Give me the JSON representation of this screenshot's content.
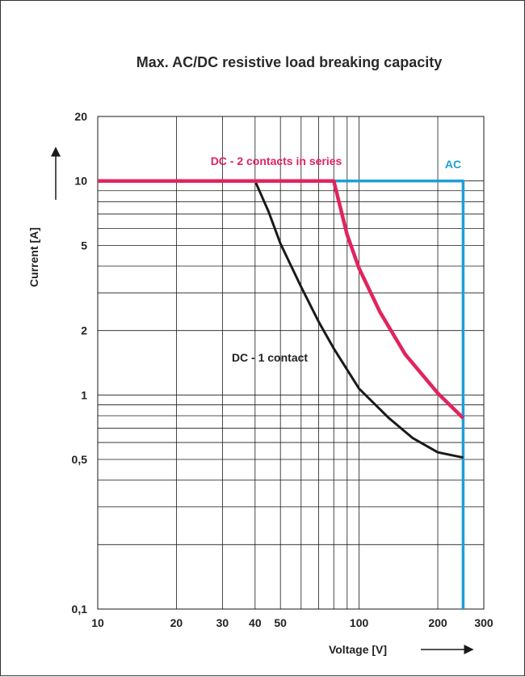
{
  "chart_data": {
    "type": "line",
    "title": "Max. AC/DC resistive load breaking capacity",
    "xlabel": "Voltage [V]",
    "ylabel": "Current [A]",
    "x_scale": "log",
    "y_scale": "log",
    "xlim": [
      10,
      300
    ],
    "ylim": [
      0.1,
      20
    ],
    "x_ticks": [
      {
        "value": 10,
        "label": "10"
      },
      {
        "value": 20,
        "label": "20"
      },
      {
        "value": 30,
        "label": "30"
      },
      {
        "value": 40,
        "label": "40"
      },
      {
        "value": 50,
        "label": "50"
      },
      {
        "value": 100,
        "label": "100"
      },
      {
        "value": 200,
        "label": "200"
      },
      {
        "value": 300,
        "label": "300"
      }
    ],
    "y_ticks": [
      {
        "value": 0.1,
        "label": "0,1"
      },
      {
        "value": 0.5,
        "label": "0,5"
      },
      {
        "value": 1,
        "label": "1"
      },
      {
        "value": 2,
        "label": "2"
      },
      {
        "value": 5,
        "label": "5"
      },
      {
        "value": 10,
        "label": "10"
      },
      {
        "value": 20,
        "label": "20"
      }
    ],
    "x_grid": [
      10,
      20,
      30,
      40,
      50,
      60,
      70,
      80,
      90,
      100,
      200,
      300
    ],
    "y_grid": [
      0.1,
      0.2,
      0.3,
      0.4,
      0.5,
      0.6,
      0.7,
      0.8,
      0.9,
      1,
      2,
      3,
      4,
      5,
      6,
      7,
      8,
      9,
      10,
      20
    ],
    "grid": true,
    "series": [
      {
        "name": "DC - 1 contact",
        "color": "#1a1a1a",
        "x": [
          10,
          40,
          45,
          50,
          60,
          70,
          80,
          100,
          130,
          160,
          200,
          250
        ],
        "y": [
          10,
          10,
          7.2,
          5.1,
          3.2,
          2.2,
          1.65,
          1.07,
          0.78,
          0.63,
          0.54,
          0.51
        ]
      },
      {
        "name": "DC - 2 contacts in series",
        "color": "#e0245e",
        "x": [
          10,
          80,
          90,
          100,
          120,
          150,
          200,
          250
        ],
        "y": [
          10,
          10,
          5.6,
          3.9,
          2.45,
          1.55,
          1.02,
          0.78
        ]
      },
      {
        "name": "AC",
        "color": "#1e9fd6",
        "x": [
          80,
          250,
          250
        ],
        "y": [
          10,
          10,
          0.1
        ]
      }
    ]
  }
}
